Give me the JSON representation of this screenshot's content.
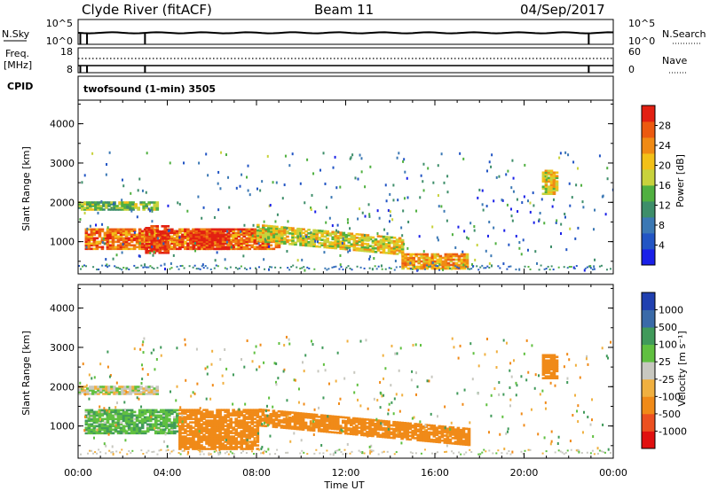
{
  "header": {
    "station": "Clyde River (fitACF)",
    "beam": "Beam 11",
    "date": "04/Sep/2017"
  },
  "noise_panel": {
    "left_label": "N.Sky",
    "left_ticks": [
      "10^5",
      "10^0"
    ],
    "right_ticks": [
      "10^5",
      "10^0"
    ],
    "right_label": "N.Search"
  },
  "freq_panel": {
    "left_label_1": "Freq.",
    "left_label_2": "[MHz]",
    "left_ticks": [
      "18",
      "8"
    ],
    "right_ticks": [
      "60",
      "0"
    ],
    "right_label": "Nave"
  },
  "cpid": {
    "label": "CPID",
    "value": "twofsound (1-min) 3505"
  },
  "x_axis": {
    "title": "Time UT",
    "ticks": [
      "00:00",
      "04:00",
      "08:00",
      "12:00",
      "16:00",
      "20:00",
      "00:00"
    ]
  },
  "power_panel": {
    "ylabel": "Slant Range [km]",
    "yticks": [
      "1000",
      "2000",
      "3000",
      "4000"
    ],
    "cbar_title": "Power [dB]",
    "cbar_ticks": [
      "4",
      "8",
      "12",
      "16",
      "20",
      "24",
      "28"
    ]
  },
  "velocity_panel": {
    "ylabel": "Slant Range [km]",
    "yticks": [
      "1000",
      "2000",
      "3000",
      "4000"
    ],
    "cbar_title": "Velocity [m s⁻¹]",
    "cbar_ticks": [
      "-1000",
      "-500",
      "-100",
      "-25",
      "25",
      "100",
      "500",
      "1000"
    ]
  },
  "colors": {
    "power_scale": [
      "#1a20e8",
      "#2255c4",
      "#3b78b4",
      "#3e8e6a",
      "#50b040",
      "#c8d23c",
      "#f2c018",
      "#f08a14",
      "#ec5a10",
      "#e22012"
    ],
    "velocity_scale": [
      "#e01010",
      "#ec5020",
      "#f08a18",
      "#f0b040",
      "#c8c8c0",
      "#60c040",
      "#409a5a",
      "#3a6aa8",
      "#2040b0"
    ]
  },
  "chart_data": [
    {
      "type": "heatmap",
      "title": "Power",
      "xlabel": "Time UT",
      "ylabel": "Slant Range [km]",
      "xlim": [
        0,
        24
      ],
      "ylim": [
        180,
        4600
      ],
      "colorbar": {
        "label": "Power [dB]",
        "range": [
          0,
          30
        ],
        "ticks": [
          4,
          8,
          12,
          16,
          20,
          24,
          28
        ]
      },
      "features": [
        {
          "name": "near-range band",
          "t_start": 0.0,
          "t_end": 3.5,
          "range_km": [
            1800,
            2000
          ],
          "power_dB": 14
        },
        {
          "name": "main 1000km band",
          "t_start": 0.3,
          "t_end": 9.0,
          "range_km": [
            800,
            1300
          ],
          "power_dB": 24
        },
        {
          "name": "strong patch",
          "t_start": 3.0,
          "t_end": 4.0,
          "range_km": [
            700,
            1400
          ],
          "power_dB": 28
        },
        {
          "name": "strong patch",
          "t_start": 5.0,
          "t_end": 6.8,
          "range_km": [
            800,
            1300
          ],
          "power_dB": 28
        },
        {
          "name": "descending band",
          "t_start": 8.0,
          "t_end": 14.5,
          "range_km": [
            500,
            1400
          ],
          "power_dB": 18
        },
        {
          "name": "late low band",
          "t_start": 14.5,
          "t_end": 17.5,
          "range_km": [
            300,
            700
          ],
          "power_dB": 22
        },
        {
          "name": "late patch",
          "t_start": 20.8,
          "t_end": 21.5,
          "range_km": [
            2200,
            2800
          ],
          "power_dB": 18
        }
      ]
    },
    {
      "type": "heatmap",
      "title": "Velocity",
      "xlabel": "Time UT",
      "ylabel": "Slant Range [km]",
      "xlim": [
        0,
        24
      ],
      "ylim": [
        180,
        4600
      ],
      "colorbar": {
        "label": "Velocity [m s⁻¹]",
        "ticks": [
          -1000,
          -500,
          -100,
          -25,
          25,
          100,
          500,
          1000
        ]
      },
      "features": [
        {
          "name": "near-range band",
          "t_start": 0.0,
          "t_end": 3.5,
          "range_km": [
            1800,
            2000
          ],
          "velocity": 0
        },
        {
          "name": "green band",
          "t_start": 0.3,
          "t_end": 4.5,
          "range_km": [
            800,
            1400
          ],
          "velocity": 80
        },
        {
          "name": "orange band",
          "t_start": 4.5,
          "t_end": 17.5,
          "range_km": [
            400,
            1400
          ],
          "velocity": -200
        },
        {
          "name": "late patch",
          "t_start": 20.8,
          "t_end": 21.5,
          "range_km": [
            2200,
            2800
          ],
          "velocity": -200
        }
      ]
    }
  ]
}
